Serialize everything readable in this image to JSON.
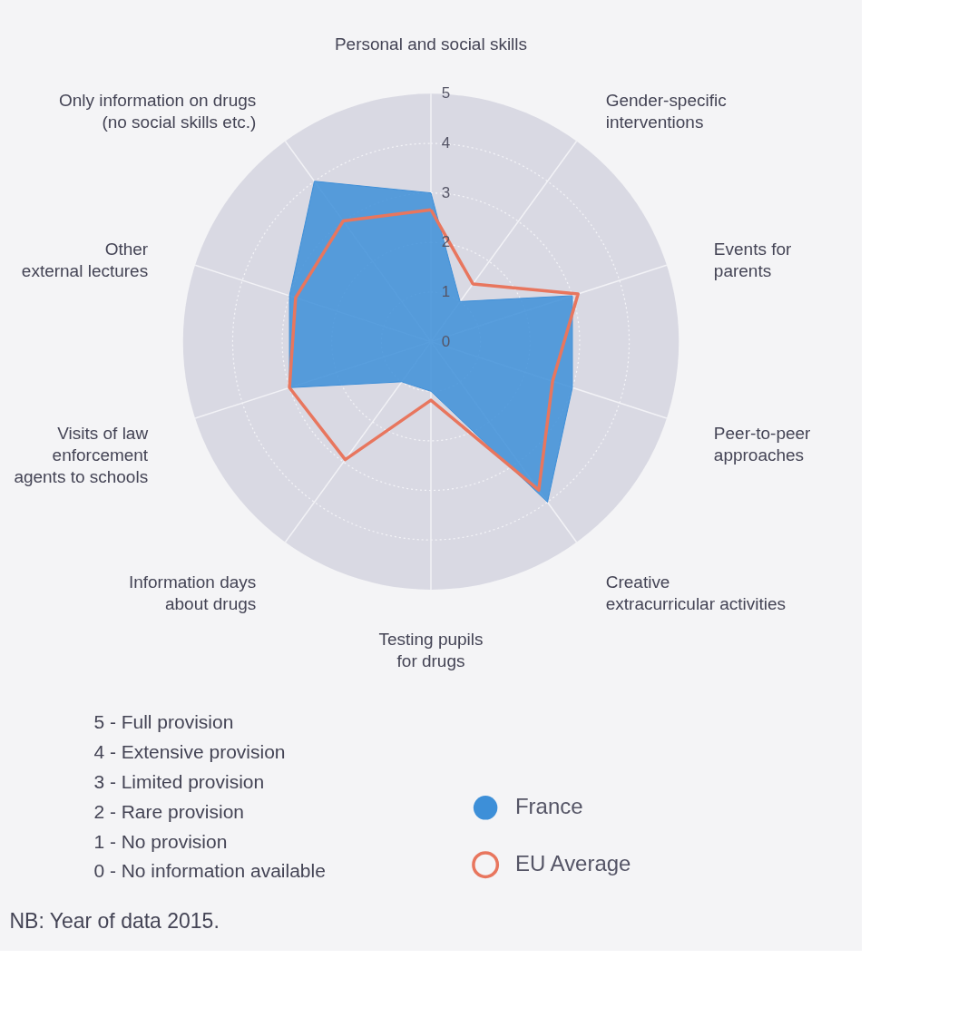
{
  "chart_data": {
    "type": "radar",
    "categories": [
      "Personal and social skills",
      "Gender-specific\ninterventions",
      "Events for\nparents",
      "Peer-to-peer\napproaches",
      "Creative\nextracurricular activities",
      "Testing pupils\nfor drugs",
      "Information days\nabout drugs",
      "Visits of law\nenforcement\nagents to schools",
      "Other\nexternal lectures",
      "Only information on drugs\n(no social skills etc.)"
    ],
    "series": [
      {
        "name": "France",
        "color": "#3d8fd8",
        "values": [
          3,
          1,
          3,
          3,
          4,
          1,
          1,
          3,
          3,
          4
        ]
      },
      {
        "name": "EU Average",
        "color": "#e8765e",
        "values": [
          2.66,
          1.44,
          3.12,
          2.58,
          3.7,
          1.18,
          2.94,
          3.0,
          2.87,
          3.01
        ]
      }
    ],
    "ylim": [
      0,
      5
    ],
    "yticks": [
      0,
      1,
      2,
      3,
      4,
      5
    ],
    "grid": true,
    "legend": "bottom right",
    "annotations": [
      "5 - Full provision",
      "4 - Extensive provision",
      "3 - Limited provision",
      "2 - Rare provision",
      "1 - No provision",
      "0 - No information available",
      "NB: Year of data 2015."
    ]
  }
}
